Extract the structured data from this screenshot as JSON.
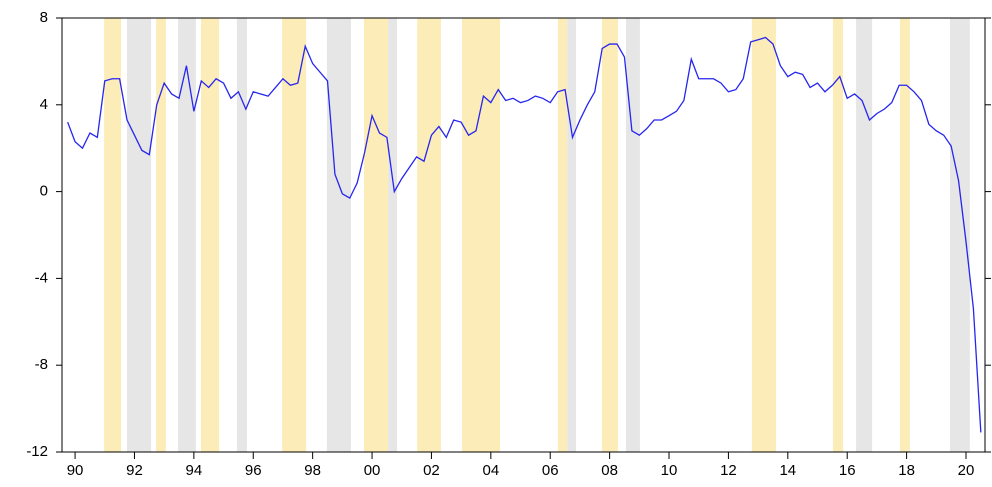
{
  "chart_data": {
    "type": "line",
    "x": [
      1989.75,
      1990,
      1990.25,
      1990.5,
      1990.75,
      1991,
      1991.25,
      1991.5,
      1991.75,
      1992,
      1992.25,
      1992.5,
      1992.75,
      1993,
      1993.25,
      1993.5,
      1993.75,
      1994,
      1994.25,
      1994.5,
      1994.75,
      1995,
      1995.25,
      1995.5,
      1995.75,
      1996,
      1996.25,
      1996.5,
      1996.75,
      1997,
      1997.25,
      1997.5,
      1997.75,
      1998,
      1998.25,
      1998.5,
      1998.75,
      1999,
      1999.25,
      1999.5,
      1999.75,
      2000,
      2000.25,
      2000.5,
      2000.75,
      2001,
      2001.25,
      2001.5,
      2001.75,
      2002,
      2002.25,
      2002.5,
      2002.75,
      2003,
      2003.25,
      2003.5,
      2003.75,
      2004,
      2004.25,
      2004.5,
      2004.75,
      2005,
      2005.25,
      2005.5,
      2005.75,
      2006,
      2006.25,
      2006.5,
      2006.75,
      2007,
      2007.25,
      2007.5,
      2007.75,
      2008,
      2008.25,
      2008.5,
      2008.75,
      2009,
      2009.25,
      2009.5,
      2009.75,
      2010,
      2010.25,
      2010.5,
      2010.75,
      2011,
      2011.25,
      2011.5,
      2011.75,
      2012,
      2012.25,
      2012.5,
      2012.75,
      2013,
      2013.25,
      2013.5,
      2013.75,
      2014,
      2014.25,
      2014.5,
      2014.75,
      2015,
      2015.25,
      2015.5,
      2015.75,
      2016,
      2016.25,
      2016.5,
      2016.75,
      2017,
      2017.25,
      2017.5,
      2017.75,
      2018,
      2018.25,
      2018.5,
      2018.75,
      2019,
      2019.25,
      2019.5,
      2019.75,
      2020,
      2020.25,
      2020.5
    ],
    "series": [
      {
        "color": "#2626f0",
        "values": [
          3.2,
          2.3,
          2.0,
          2.7,
          2.5,
          5.1,
          5.2,
          5.2,
          3.3,
          2.6,
          1.9,
          1.7,
          4.0,
          5.0,
          4.5,
          4.3,
          5.8,
          3.7,
          5.1,
          4.8,
          5.2,
          5.0,
          4.3,
          4.6,
          3.8,
          4.6,
          4.5,
          4.4,
          4.8,
          5.2,
          4.9,
          5.0,
          6.7,
          5.9,
          5.5,
          5.1,
          0.8,
          -0.1,
          -0.3,
          0.4,
          1.8,
          3.5,
          2.7,
          2.5,
          0.0,
          0.6,
          1.1,
          1.6,
          1.4,
          2.6,
          3.0,
          2.5,
          3.3,
          3.2,
          2.6,
          2.8,
          4.4,
          4.1,
          4.7,
          4.2,
          4.3,
          4.1,
          4.2,
          4.4,
          4.3,
          4.1,
          4.6,
          4.7,
          2.5,
          3.3,
          4.0,
          4.6,
          6.6,
          6.8,
          6.8,
          6.2,
          2.8,
          2.6,
          2.9,
          3.3,
          3.3,
          3.5,
          3.7,
          4.2,
          6.1,
          5.2,
          5.2,
          5.2,
          5.0,
          4.6,
          4.7,
          5.2,
          6.9,
          7.0,
          7.1,
          6.8,
          5.8,
          5.3,
          5.5,
          5.4,
          4.8,
          5.0,
          4.6,
          4.9,
          5.3,
          4.3,
          4.5,
          4.2,
          3.3,
          3.6,
          3.8,
          4.1,
          4.9,
          4.9,
          4.6,
          4.2,
          3.1,
          2.8,
          2.6,
          2.1,
          0.5,
          -2.3,
          -5.4,
          -11.1
        ]
      }
    ],
    "bands": [
      {
        "start": 1990.98,
        "end": 1991.55,
        "color": "#fcecb8"
      },
      {
        "start": 1991.75,
        "end": 1992.56,
        "color": "#e6e6e6"
      },
      {
        "start": 1992.73,
        "end": 1993.06,
        "color": "#fcecb8"
      },
      {
        "start": 1993.47,
        "end": 1994.07,
        "color": "#e6e6e6"
      },
      {
        "start": 1994.24,
        "end": 1994.85,
        "color": "#fcecb8"
      },
      {
        "start": 1995.45,
        "end": 1995.79,
        "color": "#e6e6e6"
      },
      {
        "start": 1996.97,
        "end": 1997.78,
        "color": "#fcecb8"
      },
      {
        "start": 1998.48,
        "end": 1999.29,
        "color": "#e6e6e6"
      },
      {
        "start": 1999.73,
        "end": 2000.54,
        "color": "#fcecb8"
      },
      {
        "start": 2000.54,
        "end": 2000.84,
        "color": "#e6e6e6"
      },
      {
        "start": 2001.52,
        "end": 2002.32,
        "color": "#fcecb8"
      },
      {
        "start": 2003.03,
        "end": 2004.31,
        "color": "#fcecb8"
      },
      {
        "start": 2006.26,
        "end": 2006.57,
        "color": "#fcecb8"
      },
      {
        "start": 2006.57,
        "end": 2006.87,
        "color": "#e6e6e6"
      },
      {
        "start": 2007.74,
        "end": 2008.28,
        "color": "#fcecb8"
      },
      {
        "start": 2008.55,
        "end": 2009.02,
        "color": "#e6e6e6"
      },
      {
        "start": 2012.79,
        "end": 2013.6,
        "color": "#fcecb8"
      },
      {
        "start": 2015.52,
        "end": 2015.86,
        "color": "#fcecb8"
      },
      {
        "start": 2016.3,
        "end": 2016.84,
        "color": "#e6e6e6"
      },
      {
        "start": 2017.78,
        "end": 2018.11,
        "color": "#fcecb8"
      },
      {
        "start": 2019.46,
        "end": 2020.13,
        "color": "#e6e6e6"
      }
    ],
    "xlim": [
      1989.56,
      2020.64
    ],
    "xticks": [
      {
        "value": 1990,
        "label": "90"
      },
      {
        "value": 1992,
        "label": "92"
      },
      {
        "value": 1994,
        "label": "94"
      },
      {
        "value": 1996,
        "label": "96"
      },
      {
        "value": 1998,
        "label": "98"
      },
      {
        "value": 2000,
        "label": "00"
      },
      {
        "value": 2002,
        "label": "02"
      },
      {
        "value": 2004,
        "label": "04"
      },
      {
        "value": 2006,
        "label": "06"
      },
      {
        "value": 2008,
        "label": "08"
      },
      {
        "value": 2010,
        "label": "10"
      },
      {
        "value": 2012,
        "label": "12"
      },
      {
        "value": 2014,
        "label": "14"
      },
      {
        "value": 2016,
        "label": "16"
      },
      {
        "value": 2018,
        "label": "18"
      },
      {
        "value": 2020,
        "label": "20"
      }
    ],
    "ylim": [
      -12,
      8
    ],
    "yticks": [
      -12,
      -8,
      -4,
      0,
      4,
      8
    ],
    "grid": false
  }
}
